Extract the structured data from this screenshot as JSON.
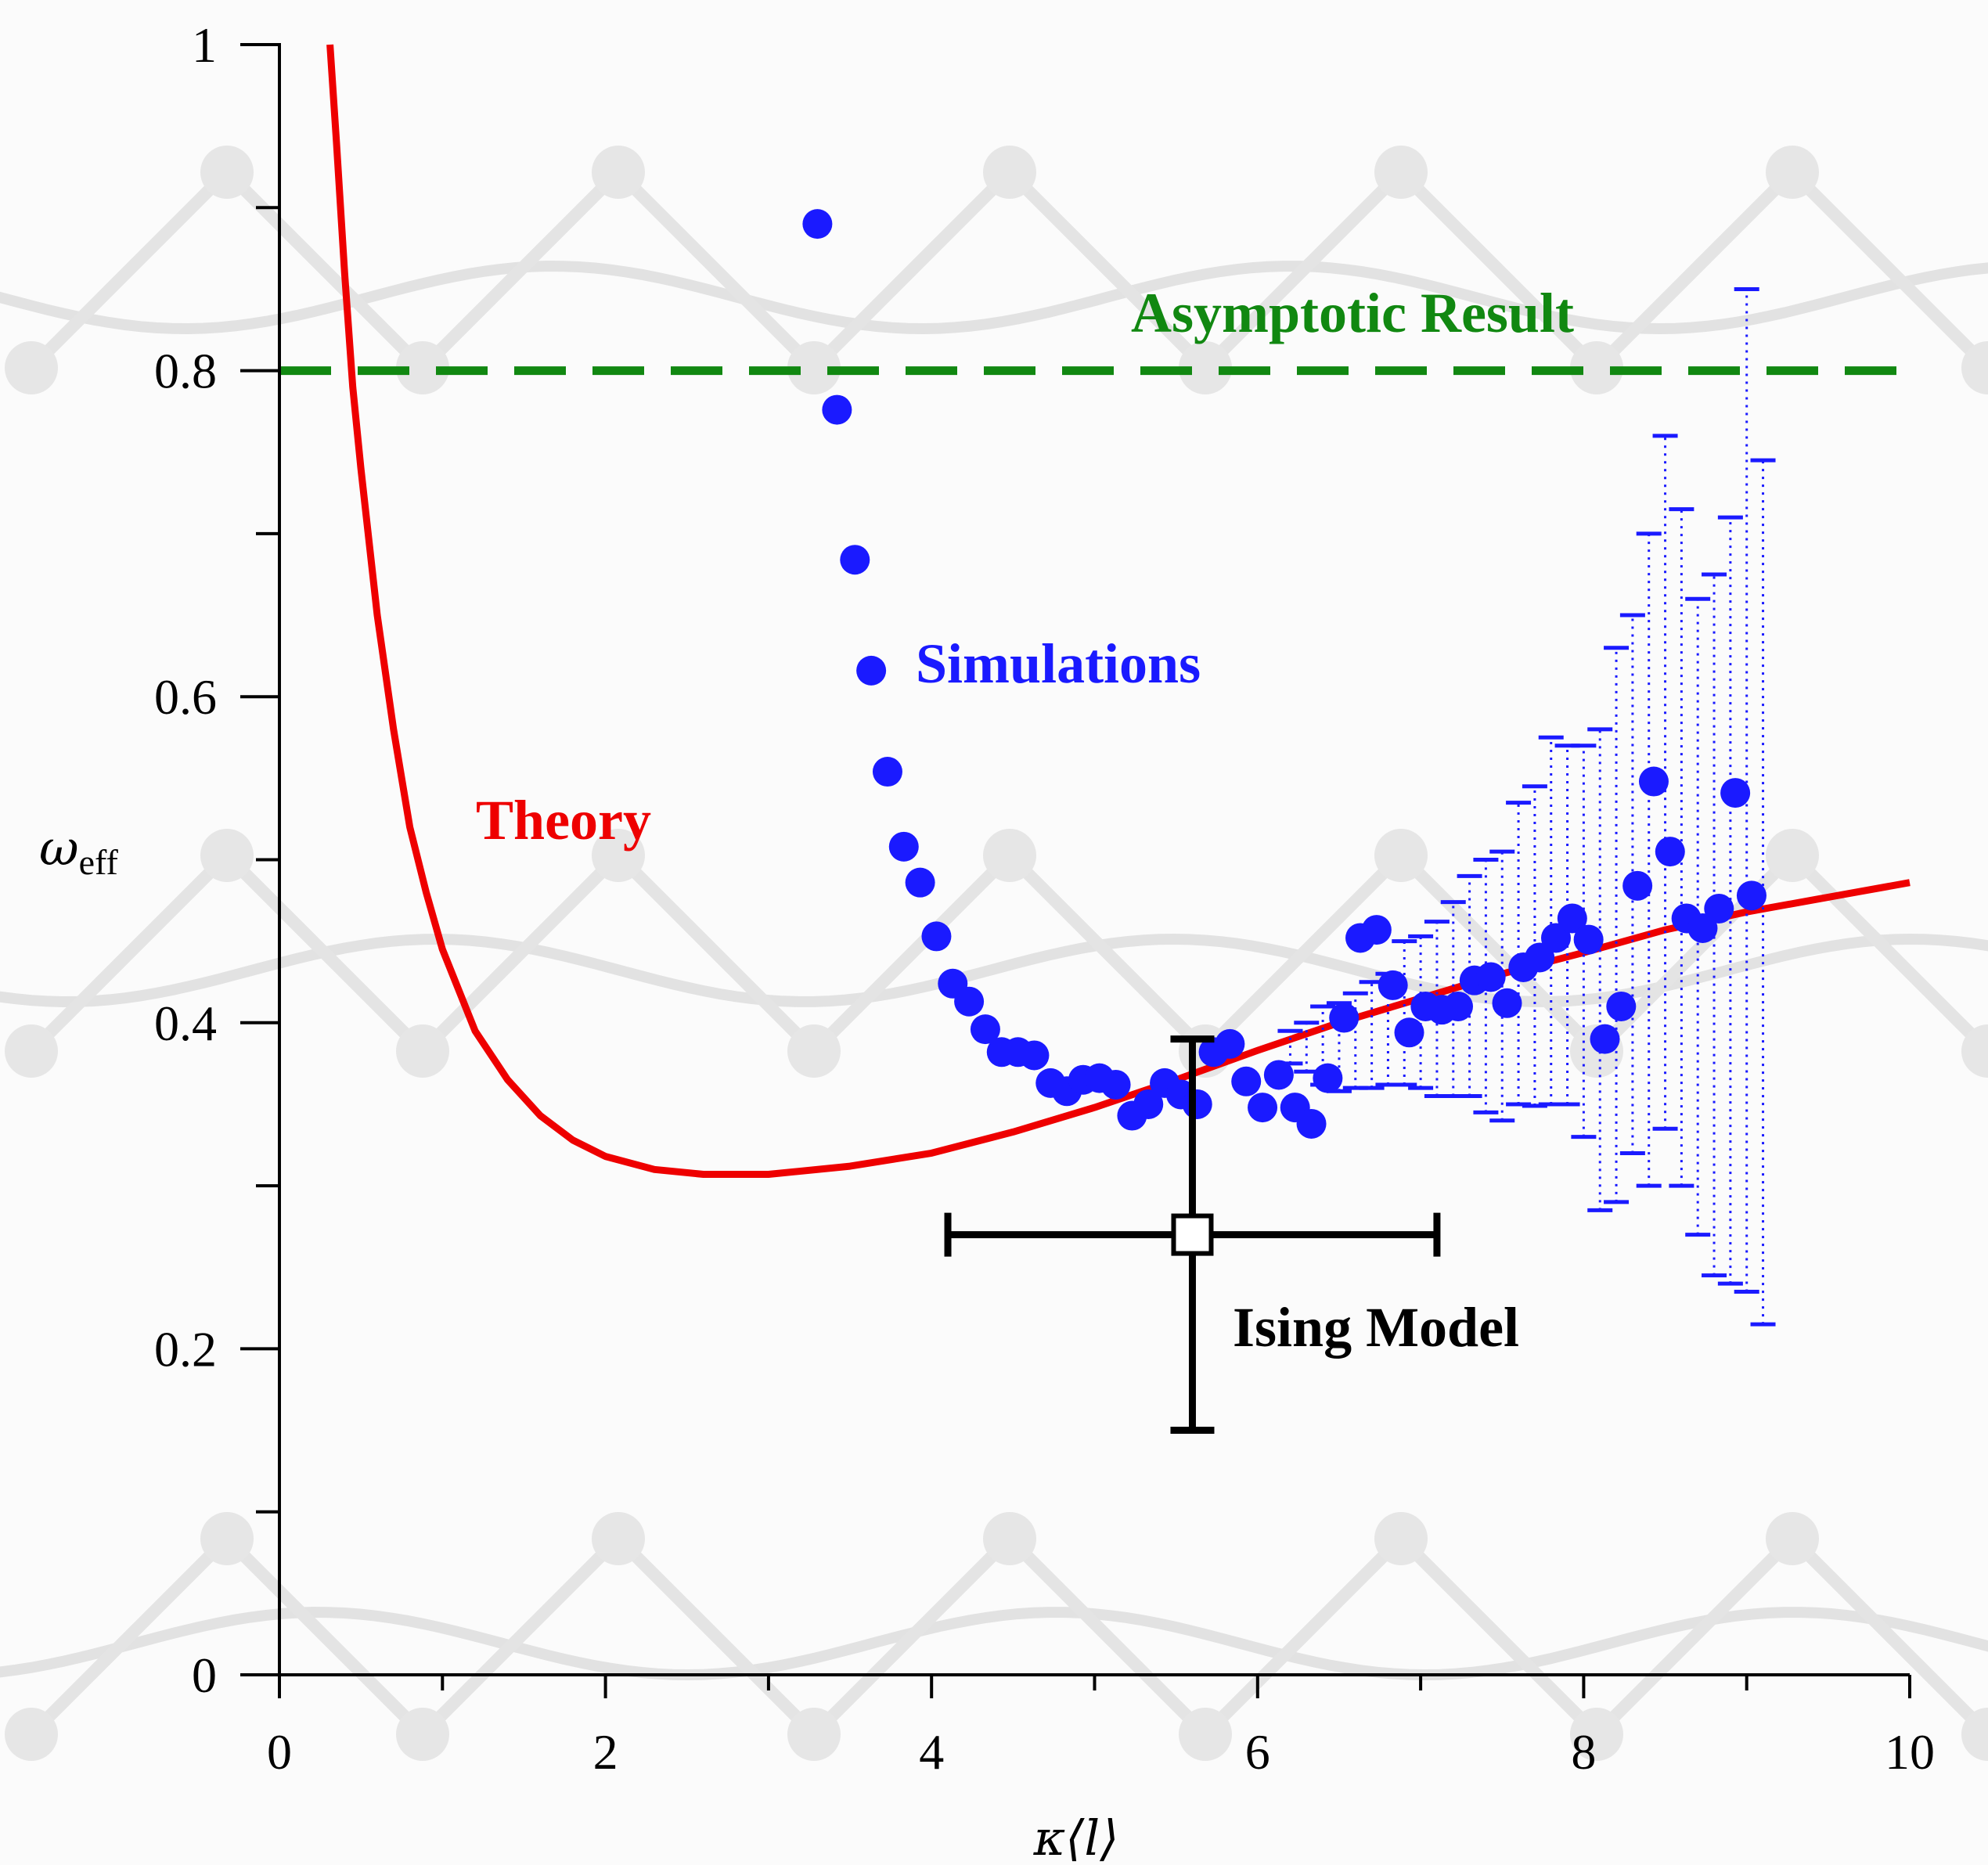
{
  "chart_data": {
    "type": "scatter",
    "xlabel": "κ⟨l⟩",
    "ylabel": "ω",
    "ylabel_sub": "eff",
    "xlim": [
      0,
      10
    ],
    "ylim": [
      0,
      1
    ],
    "x_ticks": [
      0,
      2,
      4,
      6,
      8,
      10
    ],
    "x_tick_labels": [
      "0",
      "2",
      "4",
      "6",
      "8",
      "10"
    ],
    "y_ticks": [
      0,
      0.2,
      0.4,
      0.6,
      0.8,
      1
    ],
    "y_tick_labels": [
      "0",
      "0.2",
      "0.4",
      "0.6",
      "0.8",
      "1"
    ],
    "grid": false,
    "annotations": {
      "asymptotic": {
        "text": "Asymptotic Result",
        "color": "#118811"
      },
      "simulations": {
        "text": "Simulations",
        "color": "#1a1aff"
      },
      "theory": {
        "text": "Theory",
        "color": "#ee0000"
      },
      "ising": {
        "text": "Ising Model",
        "color": "#000000"
      }
    },
    "series": [
      {
        "type": "line",
        "color": "#ee0000",
        "points": [
          [
            0.31,
            1.0
          ],
          [
            0.35,
            0.94
          ],
          [
            0.4,
            0.86
          ],
          [
            0.45,
            0.79
          ],
          [
            0.5,
            0.74
          ],
          [
            0.6,
            0.65
          ],
          [
            0.7,
            0.58
          ],
          [
            0.8,
            0.52
          ],
          [
            0.9,
            0.48
          ],
          [
            1.0,
            0.445
          ],
          [
            1.2,
            0.395
          ],
          [
            1.4,
            0.365
          ],
          [
            1.6,
            0.343
          ],
          [
            1.8,
            0.328
          ],
          [
            2.0,
            0.318
          ],
          [
            2.3,
            0.31
          ],
          [
            2.6,
            0.307
          ],
          [
            3.0,
            0.307
          ],
          [
            3.5,
            0.312
          ],
          [
            4.0,
            0.32
          ],
          [
            4.5,
            0.333
          ],
          [
            5.0,
            0.348
          ],
          [
            5.5,
            0.365
          ],
          [
            6.0,
            0.383
          ],
          [
            6.5,
            0.4
          ],
          [
            7.0,
            0.415
          ],
          [
            7.5,
            0.43
          ],
          [
            8.0,
            0.443
          ],
          [
            8.5,
            0.457
          ],
          [
            9.0,
            0.468
          ],
          [
            9.5,
            0.477
          ],
          [
            10.0,
            0.486
          ]
        ]
      },
      {
        "type": "hline",
        "color": "#118811",
        "y": 0.8,
        "dashed": true
      },
      {
        "type": "scatter",
        "color": "#1a1aff",
        "points": [
          [
            3.3,
            0.89
          ],
          [
            3.42,
            0.776
          ],
          [
            3.53,
            0.684
          ],
          [
            3.63,
            0.616
          ],
          [
            3.73,
            0.554
          ],
          [
            3.83,
            0.508
          ],
          [
            3.93,
            0.486
          ],
          [
            4.03,
            0.453
          ],
          [
            4.13,
            0.424
          ],
          [
            4.23,
            0.413
          ],
          [
            4.33,
            0.396
          ],
          [
            4.43,
            0.382
          ],
          [
            4.53,
            0.382
          ],
          [
            4.63,
            0.38
          ],
          [
            4.73,
            0.363
          ],
          [
            4.83,
            0.358
          ],
          [
            4.93,
            0.365
          ],
          [
            5.03,
            0.366
          ],
          [
            5.13,
            0.362
          ],
          [
            5.23,
            0.343
          ],
          [
            5.33,
            0.35
          ],
          [
            5.43,
            0.363
          ],
          [
            5.53,
            0.356
          ],
          [
            5.63,
            0.35
          ],
          [
            5.73,
            0.382
          ],
          [
            5.83,
            0.387
          ],
          [
            5.93,
            0.364
          ],
          [
            6.03,
            0.348
          ],
          [
            6.13,
            0.368
          ],
          [
            6.23,
            0.348
          ],
          [
            6.33,
            0.338
          ],
          [
            6.43,
            0.366
          ],
          [
            6.53,
            0.403
          ],
          [
            6.63,
            0.452
          ],
          [
            6.73,
            0.457
          ],
          [
            6.83,
            0.423
          ],
          [
            6.93,
            0.394
          ],
          [
            7.03,
            0.41
          ],
          [
            7.13,
            0.408
          ],
          [
            7.23,
            0.41
          ],
          [
            7.33,
            0.426
          ],
          [
            7.43,
            0.428
          ],
          [
            7.53,
            0.412
          ],
          [
            7.63,
            0.434
          ],
          [
            7.73,
            0.44
          ],
          [
            7.83,
            0.452
          ],
          [
            7.93,
            0.464
          ],
          [
            8.03,
            0.451
          ],
          [
            8.13,
            0.39
          ],
          [
            8.23,
            0.41
          ],
          [
            8.33,
            0.484
          ],
          [
            8.43,
            0.548
          ],
          [
            8.53,
            0.505
          ],
          [
            8.63,
            0.464
          ],
          [
            8.73,
            0.458
          ],
          [
            8.83,
            0.47
          ],
          [
            8.93,
            0.541
          ],
          [
            9.03,
            0.478
          ]
        ],
        "error_bars": [
          [
            6.2,
            0.375,
            0.395
          ],
          [
            6.3,
            0.37,
            0.4
          ],
          [
            6.4,
            0.362,
            0.41
          ],
          [
            6.5,
            0.358,
            0.412
          ],
          [
            6.6,
            0.36,
            0.418
          ],
          [
            6.7,
            0.36,
            0.425
          ],
          [
            6.8,
            0.362,
            0.43
          ],
          [
            6.9,
            0.362,
            0.45
          ],
          [
            7.0,
            0.36,
            0.453
          ],
          [
            7.1,
            0.355,
            0.462
          ],
          [
            7.2,
            0.355,
            0.474
          ],
          [
            7.3,
            0.355,
            0.49
          ],
          [
            7.4,
            0.345,
            0.5
          ],
          [
            7.5,
            0.34,
            0.505
          ],
          [
            7.6,
            0.35,
            0.535
          ],
          [
            7.7,
            0.349,
            0.545
          ],
          [
            7.8,
            0.35,
            0.575
          ],
          [
            7.9,
            0.35,
            0.57
          ],
          [
            8.0,
            0.33,
            0.57
          ],
          [
            8.1,
            0.285,
            0.58
          ],
          [
            8.2,
            0.29,
            0.63
          ],
          [
            8.3,
            0.32,
            0.65
          ],
          [
            8.4,
            0.3,
            0.7
          ],
          [
            8.5,
            0.335,
            0.76
          ],
          [
            8.6,
            0.3,
            0.715
          ],
          [
            8.7,
            0.27,
            0.66
          ],
          [
            8.8,
            0.245,
            0.675
          ],
          [
            8.9,
            0.24,
            0.71
          ],
          [
            9.0,
            0.235,
            0.85
          ],
          [
            9.1,
            0.215,
            0.745
          ]
        ]
      },
      {
        "type": "point",
        "color": "#000000",
        "marker": "square",
        "x": 5.6,
        "y": 0.27,
        "xerr": [
          4.1,
          7.1
        ],
        "yerr": [
          0.15,
          0.39
        ]
      }
    ]
  }
}
